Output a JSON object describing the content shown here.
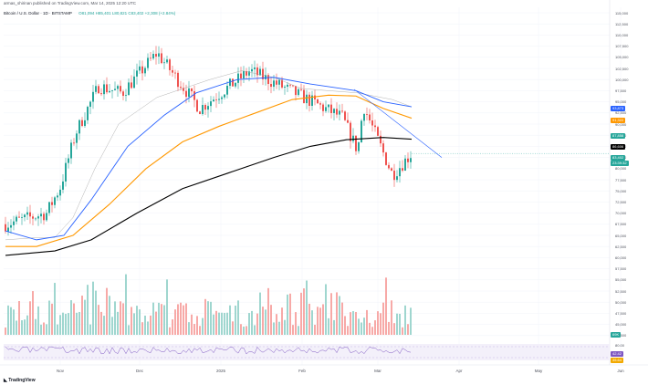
{
  "header": {
    "publisher_line": "armas_shirinan published on TradingView.com, Mar 14, 2025 12:20 UTC"
  },
  "symbol": {
    "title": "Bitcoin / U.S. Dollar · 1D · BITSTAMP",
    "ohlc": "O81,094 H85,401 L80,821 C83,402 +2,308 (+2.84%)"
  },
  "price_axis": {
    "ticks": [
      "115,000",
      "112,500",
      "110,000",
      "107,500",
      "105,000",
      "102,500",
      "100,000",
      "97,500",
      "95,000",
      "92,500",
      "90,000",
      "87,500",
      "85,000",
      "82,500",
      "80,000",
      "77,500",
      "75,000",
      "72,500",
      "70,000",
      "67,500",
      "65,000",
      "62,500",
      "60,000",
      "57,500",
      "55,000",
      "52,500",
      "50,000",
      "47,500",
      "45,000",
      "42,500"
    ],
    "labels": [
      {
        "text": "93,873",
        "color": "#2962ff"
      },
      {
        "text": "91,322",
        "color": "#ff9800"
      },
      {
        "text": "87,858",
        "color": "#26a69a"
      },
      {
        "text": "86,606",
        "color": "#000000"
      },
      {
        "text": "83,402",
        "color": "#26a69a"
      },
      {
        "text": "23:39:32",
        "color": "#26a69a"
      },
      {
        "text": "69K",
        "color": "#26a69a"
      }
    ]
  },
  "rsi_axis": {
    "ticks": [
      "80.00"
    ],
    "labels": [
      {
        "text": "42.42",
        "color": "#7e57c2"
      },
      {
        "text": "35.64",
        "color": "#f2a900"
      }
    ]
  },
  "time_axis": {
    "ticks": [
      "Nov",
      "Dec",
      "2025",
      "Feb",
      "Mar",
      "Apr",
      "May",
      "Jun"
    ]
  },
  "footer": {
    "logo_text": "TradingView"
  },
  "colors": {
    "up": "#26a69a",
    "down": "#ef5350",
    "ma_blue": "#2962ff",
    "ma_orange": "#ff9800",
    "ma_black": "#000000",
    "ma_gray": "#9e9e9e",
    "trendline": "#2962ff",
    "rsi": "#7e57c2"
  },
  "chart_data": {
    "type": "candlestick",
    "xlabel": "",
    "ylabel": "",
    "ylim": [
      42500,
      115000
    ],
    "moving_averages": {
      "blue_last": 93873,
      "orange_last": 91322,
      "black_last": 86606
    },
    "close_points": [
      {
        "x": "Oct 16",
        "close": 67500
      },
      {
        "x": "Oct 30",
        "close": 70000
      },
      {
        "x": "Nov 6",
        "close": 75800
      },
      {
        "x": "Nov 13",
        "close": 88000
      },
      {
        "x": "Nov 22",
        "close": 98500
      },
      {
        "x": "Dec 5",
        "close": 97000
      },
      {
        "x": "Dec 17",
        "close": 106000
      },
      {
        "x": "Dec 31",
        "close": 93500
      },
      {
        "x": "Jan 20",
        "close": 102000
      },
      {
        "x": "Feb 3",
        "close": 97500
      },
      {
        "x": "Feb 24",
        "close": 91500
      },
      {
        "x": "Feb 28",
        "close": 84000
      },
      {
        "x": "Mar 2",
        "close": 94200
      },
      {
        "x": "Mar 10",
        "close": 78600
      },
      {
        "x": "Mar 14",
        "close": 83402
      }
    ]
  }
}
